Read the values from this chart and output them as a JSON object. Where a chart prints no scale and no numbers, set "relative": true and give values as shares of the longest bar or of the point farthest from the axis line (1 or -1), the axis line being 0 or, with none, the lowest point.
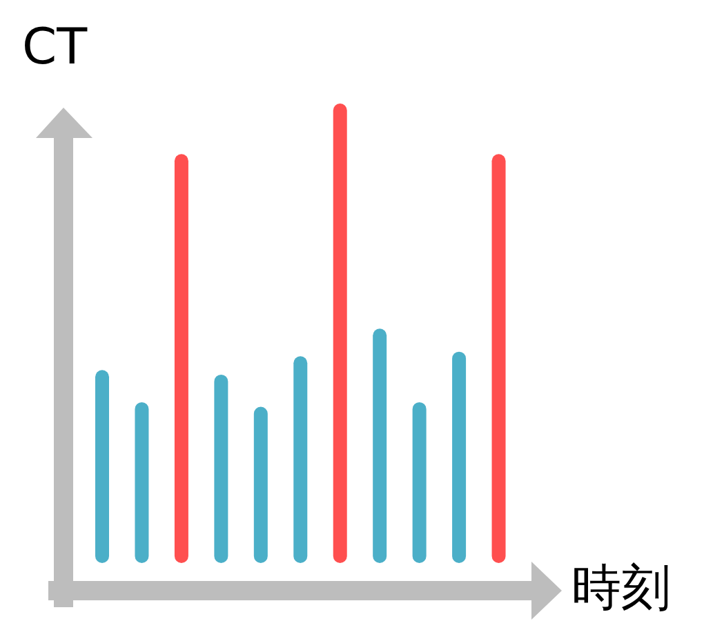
{
  "chart_data": {
    "type": "bar",
    "relative": true,
    "xlabel": "時刻",
    "ylabel": "CT",
    "categories": [
      null,
      null,
      null,
      null,
      null,
      null,
      null,
      null,
      null,
      null,
      null
    ],
    "values": [
      0.42,
      0.35,
      0.89,
      0.41,
      0.34,
      0.45,
      1,
      0.51,
      0.35,
      0.46,
      0.89
    ],
    "colors": [
      "#4bafc8",
      "#4bafc8",
      "#ff4f4f",
      "#4bafc8",
      "#4bafc8",
      "#4bafc8",
      "#ff4f4f",
      "#4bafc8",
      "#4bafc8",
      "#4bafc8",
      "#ff4f4f"
    ],
    "grid": false,
    "legend": false
  }
}
